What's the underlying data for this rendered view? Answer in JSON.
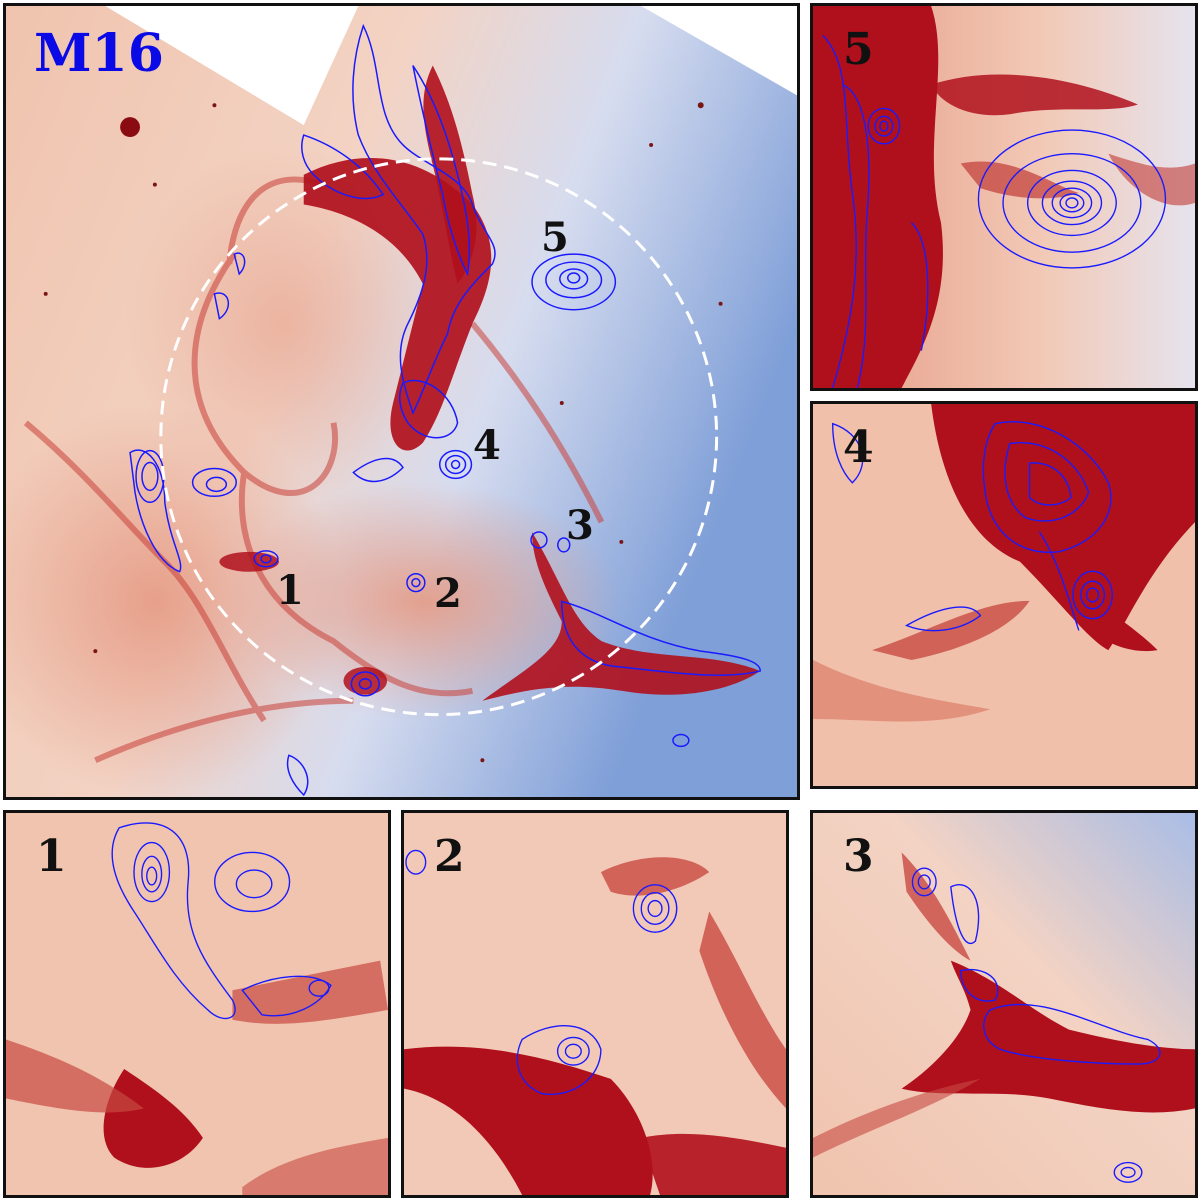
{
  "main": {
    "title": "M16",
    "title_color": "#0a0ae6",
    "region_labels": [
      "1",
      "2",
      "3",
      "4",
      "5"
    ]
  },
  "insets": [
    {
      "label": "5"
    },
    {
      "label": "4"
    },
    {
      "label": "1"
    },
    {
      "label": "2"
    },
    {
      "label": "3"
    }
  ],
  "colors": {
    "dense_emission": "#b0101c",
    "mid_emission": "#d9725e",
    "low_emission": "#f3cdb8",
    "background_blue": "#8fa8dc",
    "contour": "#1a1aff",
    "circle": "#ffffff"
  }
}
